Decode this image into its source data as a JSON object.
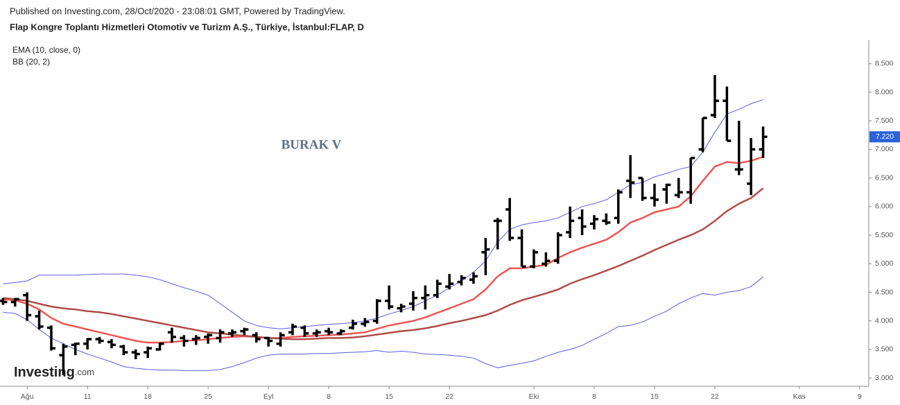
{
  "chart_data": {
    "type": "ohlc",
    "published": "Published on Investing.com, 28/Oct/2020 - 23:08:01 GMT, Powered by TradingView.",
    "title": "Flap Kongre Toplantı Hizmetleri Otomotiv ve Turizm A.Ş., Türkiye, İstanbul:FLAP, D",
    "watermark": "BURAK V",
    "logo_text": "Investing",
    "logo_suffix": ".com",
    "x": [
      0,
      1,
      2,
      3,
      4,
      5,
      6,
      7,
      8,
      9,
      10,
      11,
      12,
      13,
      14,
      15,
      16,
      17,
      18,
      19,
      20,
      21,
      22,
      23,
      24,
      25,
      26,
      27,
      28,
      29,
      30,
      31,
      32,
      33,
      34,
      35,
      36,
      37,
      38,
      39,
      40,
      41,
      42,
      43,
      44,
      45,
      46,
      47,
      48,
      49,
      50,
      51,
      52,
      53,
      54,
      55,
      56,
      57,
      58,
      59,
      60,
      61,
      62,
      63
    ],
    "open": [
      4.35,
      4.33,
      4.45,
      4.08,
      3.88,
      3.4,
      3.58,
      3.6,
      3.68,
      3.63,
      3.55,
      3.45,
      3.45,
      3.5,
      3.8,
      3.7,
      3.68,
      3.72,
      3.7,
      3.78,
      3.82,
      3.75,
      3.7,
      3.6,
      3.8,
      3.88,
      3.78,
      3.82,
      3.78,
      3.88,
      3.95,
      4.0,
      4.35,
      4.22,
      4.3,
      4.4,
      4.45,
      4.6,
      4.68,
      4.72,
      5.2,
      5.75,
      5.95,
      5.45,
      4.95,
      5.0,
      5.05,
      5.55,
      5.8,
      5.7,
      5.75,
      5.8,
      6.45,
      6.5,
      6.15,
      6.3,
      6.2,
      6.25,
      7.0,
      7.6,
      7.85,
      6.65,
      6.4,
      7.0
    ],
    "high": [
      4.4,
      4.4,
      4.5,
      4.18,
      3.92,
      3.6,
      3.62,
      3.7,
      3.72,
      3.68,
      3.58,
      3.5,
      3.55,
      3.62,
      3.88,
      3.75,
      3.75,
      3.78,
      3.85,
      3.85,
      3.88,
      3.8,
      3.72,
      3.8,
      3.95,
      3.92,
      3.85,
      3.88,
      3.85,
      4.02,
      4.05,
      4.38,
      4.62,
      4.3,
      4.52,
      4.62,
      4.72,
      4.82,
      4.8,
      4.85,
      5.45,
      5.8,
      6.15,
      5.6,
      5.25,
      5.2,
      5.55,
      6.0,
      5.95,
      5.85,
      5.88,
      6.3,
      6.9,
      6.5,
      6.4,
      6.4,
      6.5,
      6.85,
      7.55,
      8.3,
      8.1,
      7.5,
      7.2,
      7.4
    ],
    "low": [
      4.28,
      4.25,
      4.0,
      3.85,
      3.48,
      3.05,
      3.4,
      3.5,
      3.6,
      3.52,
      3.4,
      3.33,
      3.35,
      3.48,
      3.62,
      3.55,
      3.58,
      3.6,
      3.62,
      3.72,
      3.75,
      3.62,
      3.55,
      3.55,
      3.75,
      3.72,
      3.72,
      3.75,
      3.75,
      3.85,
      3.9,
      3.95,
      4.2,
      4.15,
      4.18,
      4.2,
      4.4,
      4.55,
      4.62,
      4.65,
      4.8,
      5.25,
      5.4,
      4.95,
      4.92,
      4.95,
      5.0,
      5.45,
      5.5,
      5.6,
      5.68,
      5.7,
      6.15,
      6.1,
      6.0,
      6.05,
      6.15,
      6.05,
      6.95,
      7.55,
      7.15,
      6.55,
      6.2,
      6.85
    ],
    "close": [
      4.33,
      4.38,
      4.1,
      3.9,
      3.52,
      3.55,
      3.6,
      3.68,
      3.65,
      3.58,
      3.45,
      3.42,
      3.52,
      3.6,
      3.72,
      3.65,
      3.7,
      3.75,
      3.8,
      3.8,
      3.85,
      3.68,
      3.65,
      3.75,
      3.9,
      3.78,
      3.8,
      3.8,
      3.82,
      3.95,
      3.98,
      4.35,
      4.25,
      4.25,
      4.4,
      4.45,
      4.65,
      4.65,
      4.75,
      4.78,
      5.25,
      5.75,
      5.45,
      4.95,
      5.2,
      5.05,
      5.5,
      5.75,
      5.65,
      5.78,
      5.72,
      6.25,
      6.42,
      6.15,
      6.12,
      6.38,
      6.25,
      6.85,
      7.55,
      7.85,
      7.15,
      6.65,
      7.0,
      7.22
    ],
    "color": "#000000",
    "indicators": [
      {
        "name": "EMA (10, close, 0)",
        "lines": [
          {
            "color": "#f05454",
            "width": 2.5,
            "values": [
              4.38,
              4.36,
              4.3,
              4.2,
              4.05,
              3.95,
              3.9,
              3.85,
              3.8,
              3.75,
              3.7,
              3.65,
              3.62,
              3.62,
              3.63,
              3.65,
              3.66,
              3.68,
              3.7,
              3.72,
              3.73,
              3.72,
              3.7,
              3.7,
              3.72,
              3.73,
              3.74,
              3.75,
              3.76,
              3.78,
              3.8,
              3.86,
              3.92,
              3.96,
              4.0,
              4.06,
              4.14,
              4.22,
              4.3,
              4.38,
              4.55,
              4.78,
              4.92,
              4.92,
              4.95,
              4.98,
              5.1,
              5.2,
              5.28,
              5.35,
              5.42,
              5.55,
              5.72,
              5.8,
              5.9,
              5.95,
              6.0,
              6.18,
              6.45,
              6.7,
              6.78,
              6.76,
              6.8,
              6.87
            ]
          }
        ]
      },
      {
        "name": "BB (20, 2)",
        "lines": [
          {
            "color": "#b24b48",
            "width": 2.5,
            "values": [
              4.4,
              4.38,
              4.35,
              4.3,
              4.25,
              4.22,
              4.2,
              4.17,
              4.15,
              4.12,
              4.08,
              4.04,
              4.0,
              3.96,
              3.92,
              3.88,
              3.84,
              3.8,
              3.78,
              3.76,
              3.74,
              3.72,
              3.7,
              3.69,
              3.68,
              3.68,
              3.69,
              3.7,
              3.7,
              3.71,
              3.73,
              3.76,
              3.79,
              3.82,
              3.84,
              3.87,
              3.91,
              3.96,
              4.0,
              4.05,
              4.1,
              4.18,
              4.28,
              4.36,
              4.42,
              4.48,
              4.55,
              4.65,
              4.73,
              4.8,
              4.88,
              4.96,
              5.05,
              5.14,
              5.24,
              5.33,
              5.42,
              5.5,
              5.6,
              5.75,
              5.92,
              6.05,
              6.15,
              6.32
            ]
          },
          {
            "color": "#5a5ae6",
            "width": 1,
            "values": [
              4.65,
              4.67,
              4.7,
              4.8,
              4.8,
              4.8,
              4.8,
              4.81,
              4.82,
              4.82,
              4.82,
              4.8,
              4.77,
              4.72,
              4.65,
              4.58,
              4.52,
              4.45,
              4.3,
              4.15,
              4.0,
              3.92,
              3.88,
              3.86,
              3.88,
              3.9,
              3.92,
              3.94,
              3.95,
              3.97,
              4.0,
              4.05,
              4.12,
              4.18,
              4.25,
              4.35,
              4.45,
              4.58,
              4.7,
              4.85,
              5.05,
              5.38,
              5.6,
              5.68,
              5.72,
              5.75,
              5.8,
              5.9,
              6.0,
              6.05,
              6.12,
              6.25,
              6.38,
              6.42,
              6.52,
              6.58,
              6.65,
              6.7,
              6.95,
              7.3,
              7.62,
              7.7,
              7.8,
              7.87
            ]
          },
          {
            "color": "#5a5ae6",
            "width": 1,
            "values": [
              4.15,
              4.13,
              4.02,
              3.85,
              3.7,
              3.6,
              3.5,
              3.42,
              3.35,
              3.28,
              3.2,
              3.17,
              3.15,
              3.14,
              3.14,
              3.13,
              3.13,
              3.13,
              3.15,
              3.2,
              3.27,
              3.35,
              3.4,
              3.42,
              3.42,
              3.42,
              3.43,
              3.43,
              3.44,
              3.45,
              3.46,
              3.48,
              3.45,
              3.47,
              3.45,
              3.42,
              3.41,
              3.4,
              3.38,
              3.35,
              3.25,
              3.18,
              3.22,
              3.26,
              3.3,
              3.38,
              3.45,
              3.5,
              3.57,
              3.68,
              3.78,
              3.9,
              3.92,
              3.98,
              4.08,
              4.17,
              4.3,
              4.4,
              4.48,
              4.45,
              4.5,
              4.53,
              4.6,
              4.77
            ]
          }
        ]
      }
    ],
    "last_price": {
      "value": 7.22,
      "label": "7.220",
      "color": "#2a62d8"
    },
    "xlim": [
      -0.25,
      71.3
    ],
    "xticks": [
      {
        "value": 2,
        "label": "Ağu"
      },
      {
        "value": 7,
        "label": "11"
      },
      {
        "value": 12,
        "label": "18"
      },
      {
        "value": 17,
        "label": "25"
      },
      {
        "value": 22,
        "label": "Eyl"
      },
      {
        "value": 27,
        "label": "8"
      },
      {
        "value": 32,
        "label": "15"
      },
      {
        "value": 37,
        "label": "22"
      },
      {
        "value": 44,
        "label": "Eki"
      },
      {
        "value": 49,
        "label": "8"
      },
      {
        "value": 54,
        "label": "15"
      },
      {
        "value": 59,
        "label": "22"
      },
      {
        "value": 66,
        "label": "Kas"
      },
      {
        "value": 71,
        "label": "9"
      }
    ],
    "ylim": [
      2.88,
      8.91
    ],
    "yticks": [
      {
        "value": 3,
        "label": "3.000"
      },
      {
        "value": 3.5,
        "label": "3.500"
      },
      {
        "value": 4,
        "label": "4.000"
      },
      {
        "value": 4.5,
        "label": "4.500"
      },
      {
        "value": 5,
        "label": "5.000"
      },
      {
        "value": 5.5,
        "label": "5.500"
      },
      {
        "value": 6,
        "label": "6.000"
      },
      {
        "value": 6.5,
        "label": "6.500"
      },
      {
        "value": 7,
        "label": "7.000"
      },
      {
        "value": 7.5,
        "label": "7.500"
      },
      {
        "value": 8,
        "label": "8.000"
      },
      {
        "value": 8.5,
        "label": "8.500"
      }
    ]
  }
}
